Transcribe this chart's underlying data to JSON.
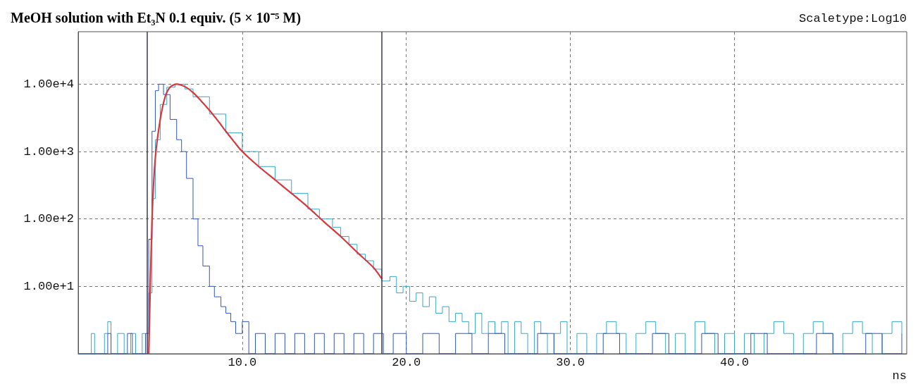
{
  "chart_data": {
    "type": "step",
    "title": "MeOH solution with Et₃N 0.1 equiv. (5 × 10⁻⁵ M)",
    "xlabel": "ns",
    "annotations": [
      "Scaletype:Log10"
    ],
    "log": "y",
    "grid": true,
    "xlim": [
      0,
      50.5
    ],
    "ylim": [
      1,
      60000
    ],
    "xticks": [
      {
        "value": 10,
        "label": "10.0"
      },
      {
        "value": 20,
        "label": "20.0"
      },
      {
        "value": 30,
        "label": "30.0"
      },
      {
        "value": 40,
        "label": "40.0"
      }
    ],
    "yticks": [
      {
        "value": 10,
        "label": "1.00e+1"
      },
      {
        "value": 100,
        "label": "1.00e+2"
      },
      {
        "value": 1000,
        "label": "1.00e+3"
      },
      {
        "value": 10000,
        "label": "1.00e+4"
      }
    ],
    "ref_lines": [
      {
        "axis": "x",
        "value": 4.2,
        "label": null,
        "color": "#3a3a4a"
      },
      {
        "axis": "x",
        "value": 18.5,
        "label": null,
        "color": "#3a3a4a"
      }
    ],
    "series": [
      {
        "color": "#35a9c9",
        "x": [
          0,
          0.8,
          1.0,
          1.6,
          1.8,
          2.0,
          2.4,
          2.8,
          3.2,
          3.5,
          3.9,
          4.1,
          4.3,
          4.5,
          4.7,
          5.0,
          5.4,
          5.9,
          6.5,
          7.0,
          8.0,
          9.0,
          10.0,
          11.0,
          12.0,
          13.0,
          14.0,
          14.7,
          15.5,
          16.0,
          16.5,
          17.0,
          17.5,
          18.0,
          18.5,
          19.0,
          19.4,
          19.8,
          20.2,
          20.6,
          21.0,
          21.4,
          21.8,
          22.2,
          22.6,
          23.0,
          23.4,
          23.8,
          24.2,
          24.6,
          25.0,
          25.4,
          25.8,
          26.2,
          26.6,
          27.0,
          27.4,
          27.8,
          28.2,
          28.6,
          29.0,
          29.4,
          29.8,
          30.4,
          31.0,
          31.6,
          32.2,
          32.8,
          33.4,
          34.0,
          34.6,
          35.2,
          35.8,
          36.4,
          37.0,
          37.6,
          38.2,
          38.8,
          39.4,
          40.0,
          40.6,
          41.2,
          41.8,
          42.4,
          43.0,
          43.6,
          44.2,
          44.8,
          45.4,
          46.0,
          46.6,
          47.2,
          47.8,
          48.4,
          49.0,
          49.6,
          50.2
        ],
        "values": [
          1,
          2,
          1,
          2,
          3,
          1,
          2,
          1,
          2,
          1,
          2,
          1,
          8,
          200,
          1500,
          5000,
          9000,
          10000,
          8500,
          6500,
          3600,
          1900,
          1000,
          600,
          380,
          240,
          140,
          100,
          75,
          55,
          42,
          30,
          24,
          18,
          12,
          14,
          8,
          10,
          6,
          8,
          5,
          7,
          4,
          5,
          3,
          4,
          3,
          2,
          4,
          2,
          3,
          2,
          3,
          1,
          3,
          2,
          1,
          3,
          2,
          1,
          2,
          3,
          1,
          2,
          1,
          2,
          3,
          2,
          1,
          2,
          3,
          2,
          1,
          2,
          1,
          3,
          2,
          1,
          2,
          1,
          2,
          1,
          2,
          3,
          2,
          1,
          2,
          3,
          2,
          1,
          2,
          3,
          2,
          1,
          2,
          3,
          2
        ]
      },
      {
        "color": "#2f55c5",
        "x": [
          0,
          1.8,
          2.0,
          3.0,
          3.3,
          4.1,
          4.3,
          4.5,
          4.7,
          4.9,
          5.2,
          5.6,
          6.0,
          6.3,
          6.6,
          7.0,
          7.3,
          7.6,
          8.0,
          8.3,
          8.7,
          9.0,
          9.3,
          9.6,
          10.0,
          10.4,
          10.8,
          11.4,
          12.0,
          12.6,
          13.2,
          13.8,
          14.4,
          15.0,
          15.6,
          16.2,
          16.8,
          17.4,
          18.0,
          18.6,
          19.2,
          20.0,
          21.0,
          22.0,
          23.0,
          24.0,
          25.0,
          26.0,
          28.0,
          29.0,
          32.0,
          33.0,
          35.0,
          36.0,
          38.0,
          39.0,
          41.0,
          42.0,
          45.0,
          46.0,
          48.0,
          49.0,
          50.2
        ],
        "values": [
          1,
          2,
          1,
          2,
          1,
          2,
          50,
          2000,
          8000,
          10000,
          7000,
          3000,
          1500,
          1000,
          400,
          100,
          40,
          20,
          10,
          7,
          5,
          4,
          3,
          2,
          3,
          1,
          2,
          1,
          2,
          1,
          2,
          1,
          2,
          1,
          2,
          1,
          2,
          1,
          2,
          1,
          2,
          1,
          2,
          1,
          2,
          1,
          2,
          1,
          2,
          1,
          2,
          1,
          2,
          1,
          2,
          1,
          2,
          1,
          2,
          1,
          2,
          1,
          2
        ]
      },
      {
        "type": "line",
        "color": "#d9363e",
        "x": [
          4.3,
          4.5,
          4.7,
          5.0,
          5.3,
          5.6,
          6.0,
          6.5,
          7.0,
          7.5,
          8.0,
          8.5,
          9.0,
          9.5,
          10.0,
          11.0,
          12.0,
          13.0,
          14.0,
          15.0,
          16.0,
          17.0,
          18.0,
          18.5
        ],
        "values": [
          1,
          100,
          800,
          3000,
          6500,
          9000,
          10000,
          9200,
          7500,
          5600,
          4100,
          2900,
          2000,
          1400,
          1000,
          600,
          380,
          240,
          150,
          90,
          55,
          32,
          19,
          13
        ]
      }
    ]
  }
}
